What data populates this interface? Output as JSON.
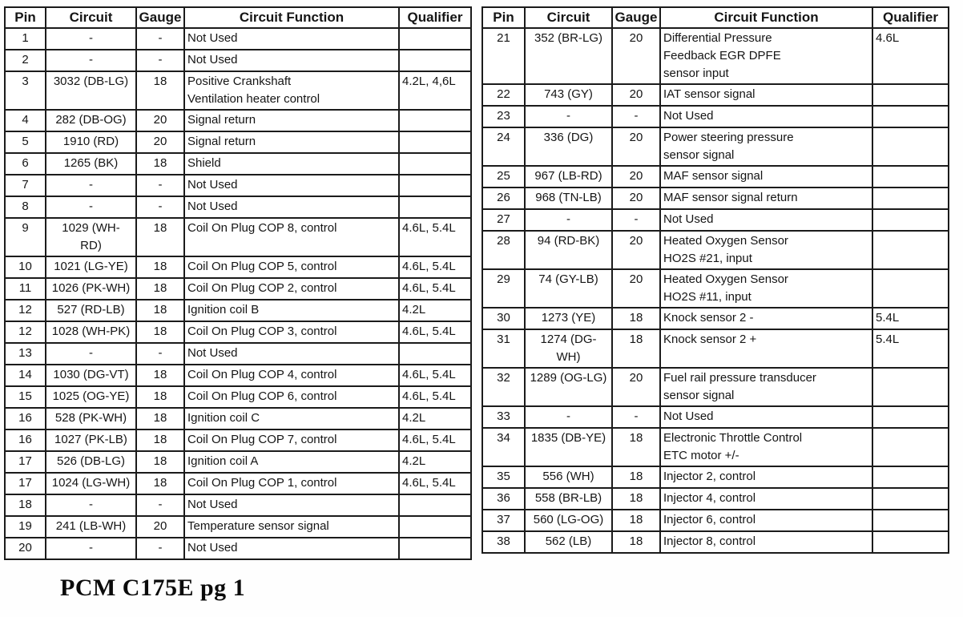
{
  "document": {
    "caption": "PCM C175E pg 1"
  },
  "colors": {
    "background": "#ffffff",
    "border": "#1b1b1b",
    "text": "#151515"
  },
  "headers": [
    "Pin",
    "Circuit",
    "Gauge",
    "Circuit Function",
    "Qualifier"
  ],
  "left_table": {
    "rows": [
      {
        "pin": "1",
        "circuit": "-",
        "gauge": "-",
        "function": "Not Used",
        "qualifier": ""
      },
      {
        "pin": "2",
        "circuit": "-",
        "gauge": "-",
        "function": "Not Used",
        "qualifier": ""
      },
      {
        "pin": "3",
        "circuit": "3032 (DB-LG)",
        "gauge": "18",
        "function": "Positive Crankshaft\nVentilation heater control",
        "qualifier": "4.2L, 4,6L"
      },
      {
        "pin": "4",
        "circuit": "282 (DB-OG)",
        "gauge": "20",
        "function": "Signal return",
        "qualifier": ""
      },
      {
        "pin": "5",
        "circuit": "1910 (RD)",
        "gauge": "20",
        "function": "Signal return",
        "qualifier": ""
      },
      {
        "pin": "6",
        "circuit": "1265 (BK)",
        "gauge": "18",
        "function": "Shield",
        "qualifier": ""
      },
      {
        "pin": "7",
        "circuit": "-",
        "gauge": "-",
        "function": "Not Used",
        "qualifier": ""
      },
      {
        "pin": "8",
        "circuit": "-",
        "gauge": "-",
        "function": "Not Used",
        "qualifier": ""
      },
      {
        "pin": "9",
        "circuit": "1029 (WH-\nRD)",
        "gauge": "18",
        "function": "Coil On Plug COP 8, control",
        "qualifier": "4.6L, 5.4L"
      },
      {
        "pin": "10",
        "circuit": "1021 (LG-YE)",
        "gauge": "18",
        "function": "Coil On Plug COP 5, control",
        "qualifier": "4.6L, 5.4L"
      },
      {
        "pin": "11",
        "circuit": "1026 (PK-WH)",
        "gauge": "18",
        "function": "Coil On Plug COP 2, control",
        "qualifier": "4.6L, 5.4L"
      },
      {
        "pin": "12",
        "circuit": "527 (RD-LB)",
        "gauge": "18",
        "function": "Ignition coil B",
        "qualifier": "4.2L"
      },
      {
        "pin": "12",
        "circuit": "1028 (WH-PK)",
        "gauge": "18",
        "function": "Coil On Plug COP 3, control",
        "qualifier": "4.6L, 5.4L"
      },
      {
        "pin": "13",
        "circuit": "-",
        "gauge": "-",
        "function": "Not Used",
        "qualifier": ""
      },
      {
        "pin": "14",
        "circuit": "1030 (DG-VT)",
        "gauge": "18",
        "function": "Coil On Plug COP 4, control",
        "qualifier": "4.6L, 5.4L"
      },
      {
        "pin": "15",
        "circuit": "1025 (OG-YE)",
        "gauge": "18",
        "function": "Coil On Plug COP 6, control",
        "qualifier": "4.6L, 5.4L"
      },
      {
        "pin": "16",
        "circuit": "528 (PK-WH)",
        "gauge": "18",
        "function": "Ignition coil C",
        "qualifier": "4.2L"
      },
      {
        "pin": "16",
        "circuit": "1027 (PK-LB)",
        "gauge": "18",
        "function": "Coil On Plug COP 7, control",
        "qualifier": "4.6L, 5.4L"
      },
      {
        "pin": "17",
        "circuit": "526 (DB-LG)",
        "gauge": "18",
        "function": "Ignition coil A",
        "qualifier": "4.2L"
      },
      {
        "pin": "17",
        "circuit": "1024 (LG-WH)",
        "gauge": "18",
        "function": "Coil On Plug COP 1, control",
        "qualifier": "4.6L, 5.4L"
      },
      {
        "pin": "18",
        "circuit": "-",
        "gauge": "-",
        "function": "Not Used",
        "qualifier": ""
      },
      {
        "pin": "19",
        "circuit": "241 (LB-WH)",
        "gauge": "20",
        "function": "Temperature sensor signal",
        "qualifier": ""
      },
      {
        "pin": "20",
        "circuit": "-",
        "gauge": "-",
        "function": "Not Used",
        "qualifier": ""
      }
    ]
  },
  "right_table": {
    "rows": [
      {
        "pin": "21",
        "circuit": "352 (BR-LG)",
        "gauge": "20",
        "function": "Differential Pressure\nFeedback EGR DPFE\nsensor input",
        "qualifier": "4.6L"
      },
      {
        "pin": "22",
        "circuit": "743 (GY)",
        "gauge": "20",
        "function": "IAT sensor signal",
        "qualifier": ""
      },
      {
        "pin": "23",
        "circuit": "-",
        "gauge": "-",
        "function": "Not Used",
        "qualifier": ""
      },
      {
        "pin": "24",
        "circuit": "336 (DG)",
        "gauge": "20",
        "function": "Power steering pressure\nsensor signal",
        "qualifier": ""
      },
      {
        "pin": "25",
        "circuit": "967 (LB-RD)",
        "gauge": "20",
        "function": "MAF sensor signal",
        "qualifier": ""
      },
      {
        "pin": "26",
        "circuit": "968 (TN-LB)",
        "gauge": "20",
        "function": "MAF sensor signal return",
        "qualifier": ""
      },
      {
        "pin": "27",
        "circuit": "-",
        "gauge": "-",
        "function": "Not Used",
        "qualifier": ""
      },
      {
        "pin": "28",
        "circuit": "94 (RD-BK)",
        "gauge": "20",
        "function": "Heated Oxygen Sensor\nHO2S #21, input",
        "qualifier": ""
      },
      {
        "pin": "29",
        "circuit": "74 (GY-LB)",
        "gauge": "20",
        "function": "Heated Oxygen Sensor\nHO2S #11, input",
        "qualifier": ""
      },
      {
        "pin": "30",
        "circuit": "1273 (YE)",
        "gauge": "18",
        "function": "Knock sensor 2 -",
        "qualifier": "5.4L"
      },
      {
        "pin": "31",
        "circuit": "1274 (DG-\nWH)",
        "gauge": "18",
        "function": "Knock sensor 2 +",
        "qualifier": "5.4L"
      },
      {
        "pin": "32",
        "circuit": "1289 (OG-LG)",
        "gauge": "20",
        "function": "Fuel rail pressure transducer\nsensor signal",
        "qualifier": ""
      },
      {
        "pin": "33",
        "circuit": "-",
        "gauge": "-",
        "function": "Not Used",
        "qualifier": ""
      },
      {
        "pin": "34",
        "circuit": "1835 (DB-YE)",
        "gauge": "18",
        "function": "Electronic Throttle Control\nETC motor +/-",
        "qualifier": ""
      },
      {
        "pin": "35",
        "circuit": "556 (WH)",
        "gauge": "18",
        "function": "Injector 2, control",
        "qualifier": ""
      },
      {
        "pin": "36",
        "circuit": "558 (BR-LB)",
        "gauge": "18",
        "function": "Injector 4, control",
        "qualifier": ""
      },
      {
        "pin": "37",
        "circuit": "560 (LG-OG)",
        "gauge": "18",
        "function": "Injector 6, control",
        "qualifier": ""
      },
      {
        "pin": "38",
        "circuit": "562 (LB)",
        "gauge": "18",
        "function": "Injector 8, control",
        "qualifier": ""
      }
    ]
  }
}
